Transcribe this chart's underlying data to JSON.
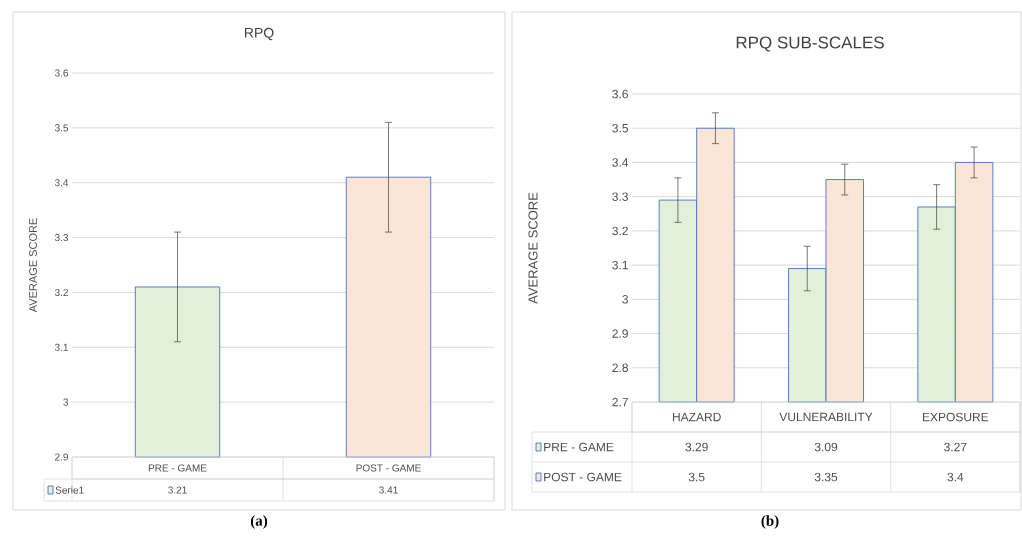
{
  "chart_data": [
    {
      "type": "bar",
      "title": "RPQ",
      "ylabel": "AVERAGE SCORE",
      "categories": [
        "PRE - GAME",
        "POST - GAME"
      ],
      "series": [
        {
          "name": "Serie1",
          "colors": [
            "#e2f0d9",
            "#fbe5d6"
          ],
          "values": [
            3.21,
            3.41
          ],
          "errors": [
            0.1,
            0.1
          ]
        }
      ],
      "ylim": [
        2.9,
        3.6
      ],
      "yticks": [
        2.9,
        3,
        3.1,
        3.2,
        3.3,
        3.4,
        3.5,
        3.6
      ],
      "grid": "y",
      "legend": "bottom",
      "data_labels": true,
      "annotations": [
        "(a)"
      ]
    },
    {
      "type": "bar",
      "title": "RPQ SUB-SCALES",
      "ylabel": "AVERAGE SCORE",
      "categories": [
        "HAZARD",
        "VULNERABILITY",
        "EXPOSURE"
      ],
      "series": [
        {
          "name": "PRE - GAME",
          "color": "#e2f0d9",
          "values": [
            3.29,
            3.09,
            3.27
          ],
          "errors": [
            0.065,
            0.065,
            0.065
          ]
        },
        {
          "name": "POST - GAME",
          "color": "#fbe5d6",
          "values": [
            3.5,
            3.35,
            3.4
          ],
          "errors": [
            0.045,
            0.045,
            0.045
          ]
        }
      ],
      "ylim": [
        2.7,
        3.6
      ],
      "yticks": [
        2.7,
        2.8,
        2.9,
        3,
        3.1,
        3.2,
        3.3,
        3.4,
        3.5,
        3.6
      ],
      "grid": "y",
      "legend": "bottom",
      "data_labels": true,
      "annotations": [
        "(b)"
      ]
    }
  ]
}
